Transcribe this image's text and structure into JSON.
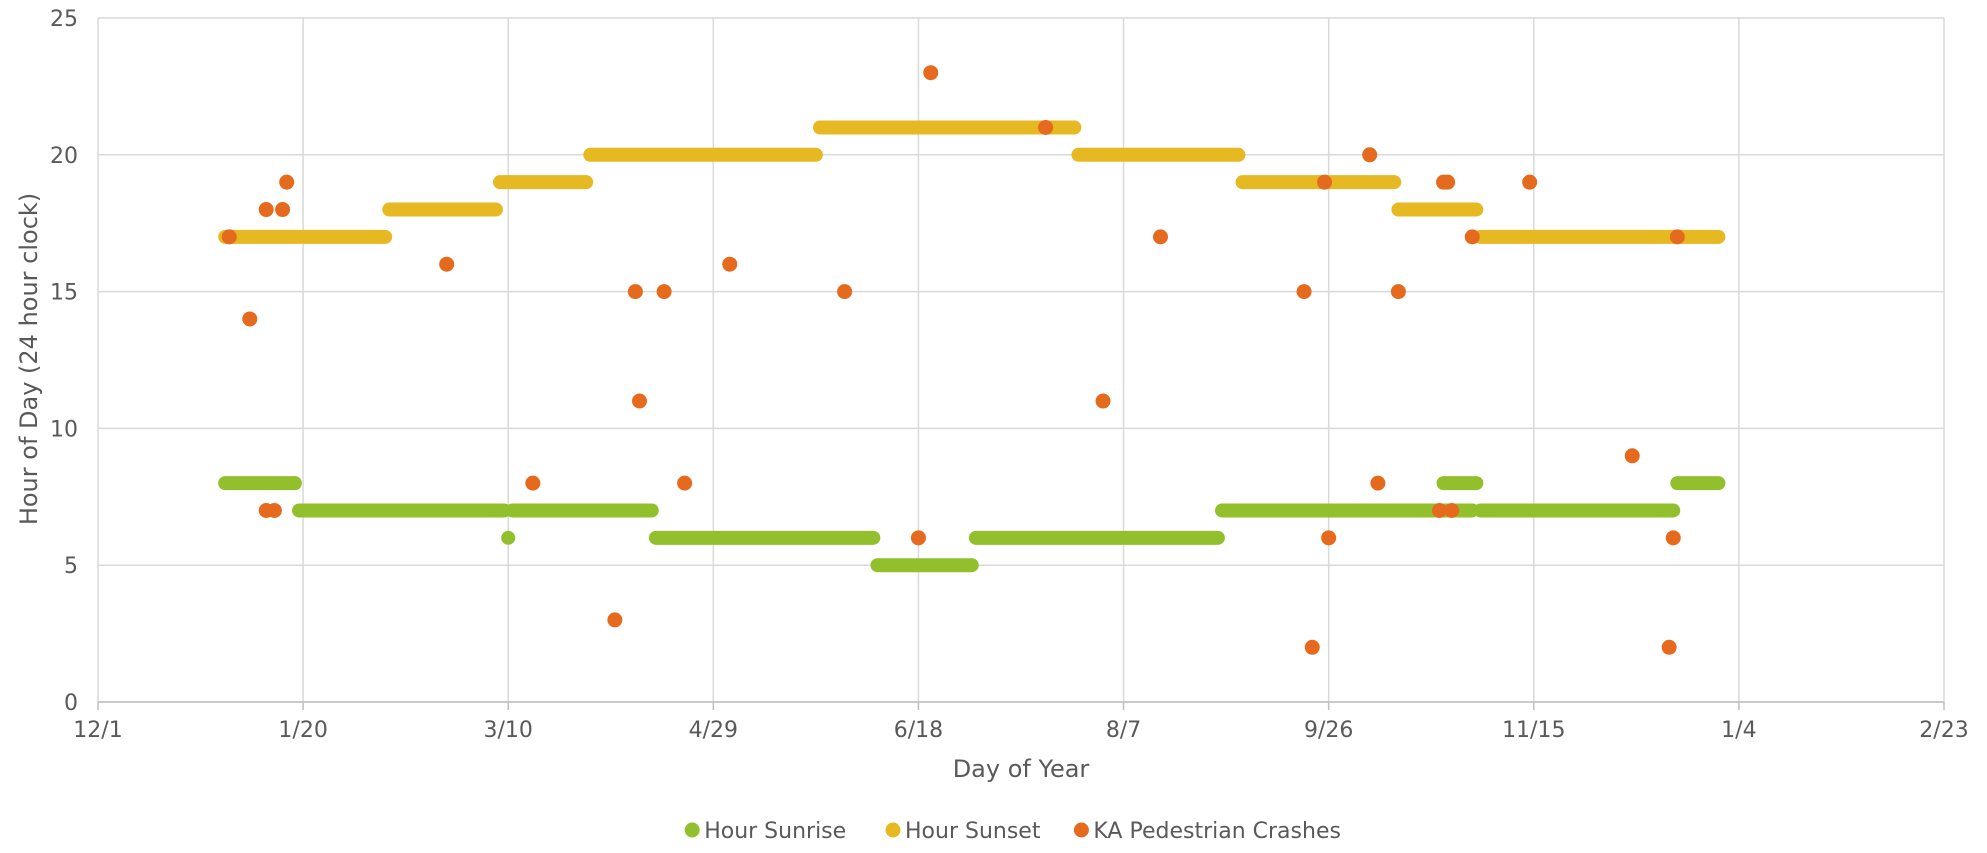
{
  "chart_data": {
    "type": "scatter",
    "title": "",
    "xlabel": "Day of Year",
    "ylabel": "Hour of Day (24 hour clock)",
    "x_ticks": [
      "12/1",
      "1/20",
      "3/10",
      "4/29",
      "6/18",
      "8/7",
      "9/26",
      "11/15",
      "1/4",
      "2/23"
    ],
    "x_range_days": [
      0,
      450
    ],
    "y_ticks": [
      "0",
      "5",
      "10",
      "15",
      "20",
      "25"
    ],
    "ylim": [
      0,
      25
    ],
    "grid": true,
    "legend_position": "bottom",
    "series": [
      {
        "name": "Hour Sunrise",
        "color": "#92C02C",
        "segments": [
          {
            "value": 8,
            "from": "1/1",
            "to": "1/18"
          },
          {
            "value": 7,
            "from": "1/19",
            "to": "3/10"
          },
          {
            "value": 6,
            "from": "3/11",
            "to": "3/11"
          },
          {
            "value": 7,
            "from": "3/12",
            "to": "4/15"
          },
          {
            "value": 6,
            "from": "4/16",
            "to": "6/8"
          },
          {
            "value": 5,
            "from": "6/9",
            "to": "7/2"
          },
          {
            "value": 6,
            "from": "7/3",
            "to": "8/31"
          },
          {
            "value": 7,
            "from": "9/1",
            "to": "11/1"
          },
          {
            "value": 8,
            "from": "10/25",
            "to": "11/2"
          },
          {
            "value": 7,
            "from": "11/3",
            "to": "12/20"
          },
          {
            "value": 8,
            "from": "12/21",
            "to": "12/31"
          }
        ]
      },
      {
        "name": "Hour Sunset",
        "color": "#E6B822",
        "segments": [
          {
            "value": 17,
            "from": "1/1",
            "to": "2/9"
          },
          {
            "value": 18,
            "from": "2/10",
            "to": "3/8"
          },
          {
            "value": 19,
            "from": "3/9",
            "to": "3/30"
          },
          {
            "value": 20,
            "from": "3/31",
            "to": "5/25"
          },
          {
            "value": 21,
            "from": "5/26",
            "to": "7/27"
          },
          {
            "value": 20,
            "from": "7/28",
            "to": "9/5"
          },
          {
            "value": 19,
            "from": "9/6",
            "to": "10/13"
          },
          {
            "value": 18,
            "from": "10/14",
            "to": "11/2"
          },
          {
            "value": 17,
            "from": "11/3",
            "to": "12/31"
          }
        ]
      },
      {
        "name": "KA Pedestrian Crashes",
        "color": "#E56A1E",
        "points": [
          {
            "x": "1/2",
            "y": 17
          },
          {
            "x": "1/7",
            "y": 14
          },
          {
            "x": "1/11",
            "y": 18
          },
          {
            "x": "1/11",
            "y": 7
          },
          {
            "x": "1/13",
            "y": 7
          },
          {
            "x": "1/15",
            "y": 18
          },
          {
            "x": "1/16",
            "y": 19
          },
          {
            "x": "2/24",
            "y": 16
          },
          {
            "x": "3/17",
            "y": 8
          },
          {
            "x": "4/6",
            "y": 3
          },
          {
            "x": "4/11",
            "y": 15
          },
          {
            "x": "4/12",
            "y": 11
          },
          {
            "x": "4/18",
            "y": 15
          },
          {
            "x": "4/23",
            "y": 8
          },
          {
            "x": "5/4",
            "y": 16
          },
          {
            "x": "6/1",
            "y": 15
          },
          {
            "x": "6/19",
            "y": 6
          },
          {
            "x": "6/22",
            "y": 23
          },
          {
            "x": "7/20",
            "y": 21
          },
          {
            "x": "8/3",
            "y": 11
          },
          {
            "x": "8/17",
            "y": 17
          },
          {
            "x": "9/21",
            "y": 15
          },
          {
            "x": "9/23",
            "y": 2
          },
          {
            "x": "9/26",
            "y": 19
          },
          {
            "x": "9/27",
            "y": 6
          },
          {
            "x": "10/7",
            "y": 20
          },
          {
            "x": "10/9",
            "y": 8
          },
          {
            "x": "10/14",
            "y": 15
          },
          {
            "x": "10/24",
            "y": 7
          },
          {
            "x": "10/25",
            "y": 19
          },
          {
            "x": "10/26",
            "y": 19
          },
          {
            "x": "10/27",
            "y": 7
          },
          {
            "x": "11/1",
            "y": 17
          },
          {
            "x": "11/15",
            "y": 19
          },
          {
            "x": "12/10",
            "y": 9
          },
          {
            "x": "12/19",
            "y": 2
          },
          {
            "x": "12/20",
            "y": 6
          },
          {
            "x": "12/21",
            "y": 17
          }
        ]
      }
    ]
  }
}
